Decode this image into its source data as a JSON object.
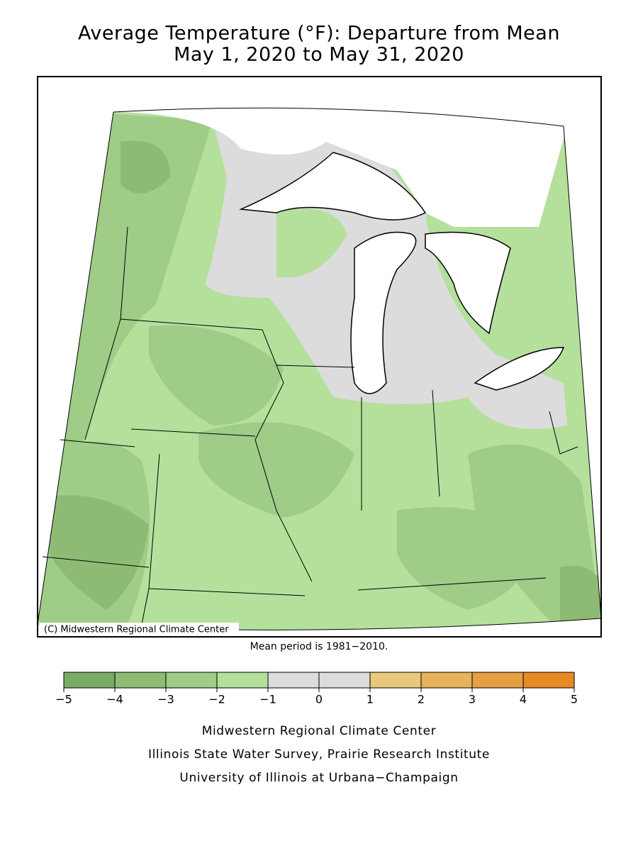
{
  "header": {
    "title_line1": "Average Temperature (°F): Departure from Mean",
    "title_line2": "May 1, 2020 to May 31, 2020"
  },
  "map": {
    "credit": "(C) Midwestern Regional Climate Center",
    "note": "Mean period is 1981−2010."
  },
  "legend": {
    "ticks": [
      {
        "value": -5,
        "label": "−5"
      },
      {
        "value": -4,
        "label": "−4"
      },
      {
        "value": -3,
        "label": "−3"
      },
      {
        "value": -2,
        "label": "−2"
      },
      {
        "value": -1,
        "label": "−1"
      },
      0,
      1,
      2,
      3,
      4,
      5
    ],
    "colors": [
      "#7aab64",
      "#8dbb74",
      "#9fcc87",
      "#b4e09c",
      "#dcdcdc",
      "#dcdcdc",
      "#e8c97c",
      "#e6b35c",
      "#e6a043",
      "#e68a22"
    ]
  },
  "footer": {
    "line1": "Midwestern Regional Climate Center",
    "line2": "Illinois State Water Survey, Prairie Research Institute",
    "line3": "University of Illinois at Urbana−Champaign"
  }
}
